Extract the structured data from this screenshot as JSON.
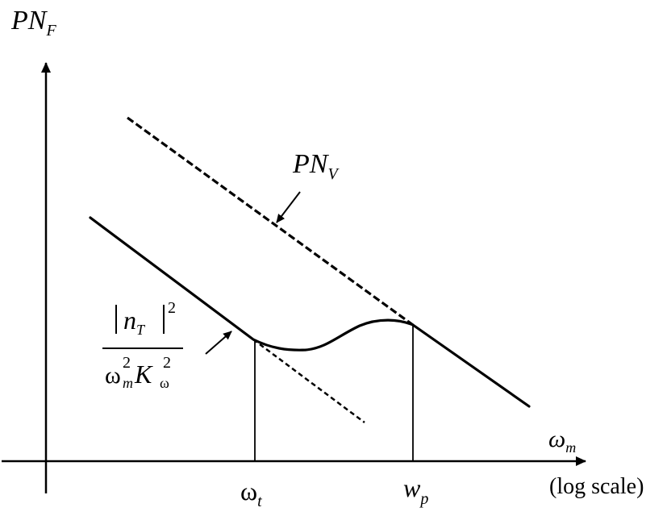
{
  "diagram": {
    "y_axis": {
      "base": "PN",
      "sub": "F"
    },
    "x_axis": {
      "base": "ω",
      "sub": "m",
      "scale_note": "(log scale)"
    },
    "curve_v": {
      "base": "PN",
      "sub": "V"
    },
    "asymptote": {
      "num_base": "n",
      "num_sub": "T",
      "num_sup": "2",
      "den_omega": "ω",
      "den_omega_sub": "m",
      "den_omega_sup": "2",
      "den_k": "K",
      "den_k_sub": "ω",
      "den_k_sup": "2"
    },
    "tick_t": {
      "base": "ω",
      "sub": "t"
    },
    "tick_p": {
      "base": "w",
      "sub": "p"
    }
  }
}
